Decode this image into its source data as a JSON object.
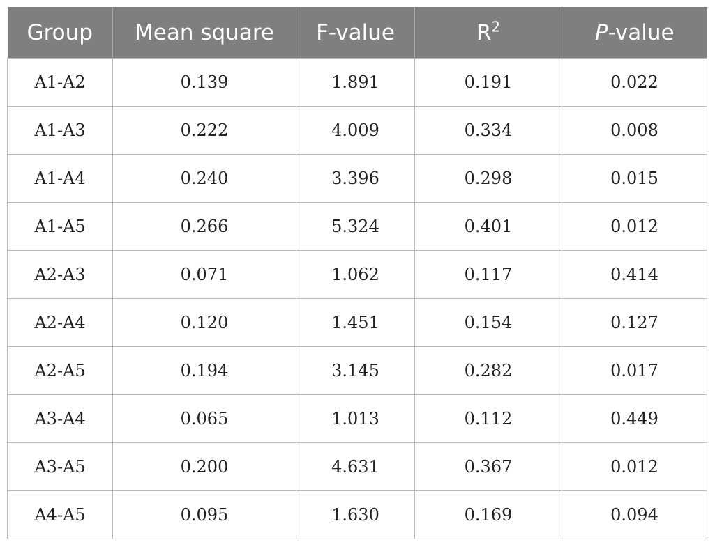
{
  "table": {
    "headers": {
      "group": "Group",
      "mean_square": "Mean square",
      "f_value": "F-value",
      "r2_base": "R",
      "r2_sup": "2",
      "p_value_italic": "P",
      "p_value_rest": "-value"
    },
    "rows": [
      [
        "A1-A2",
        "0.139",
        "1.891",
        "0.191",
        "0.022"
      ],
      [
        "A1-A3",
        "0.222",
        "4.009",
        "0.334",
        "0.008"
      ],
      [
        "A1-A4",
        "0.240",
        "3.396",
        "0.298",
        "0.015"
      ],
      [
        "A1-A5",
        "0.266",
        "5.324",
        "0.401",
        "0.012"
      ],
      [
        "A2-A3",
        "0.071",
        "1.062",
        "0.117",
        "0.414"
      ],
      [
        "A2-A4",
        "0.120",
        "1.451",
        "0.154",
        "0.127"
      ],
      [
        "A2-A5",
        "0.194",
        "3.145",
        "0.282",
        "0.017"
      ],
      [
        "A3-A4",
        "0.065",
        "1.013",
        "0.112",
        "0.449"
      ],
      [
        "A3-A5",
        "0.200",
        "4.631",
        "0.367",
        "0.012"
      ],
      [
        "A4-A5",
        "0.095",
        "1.630",
        "0.169",
        "0.094"
      ]
    ]
  }
}
